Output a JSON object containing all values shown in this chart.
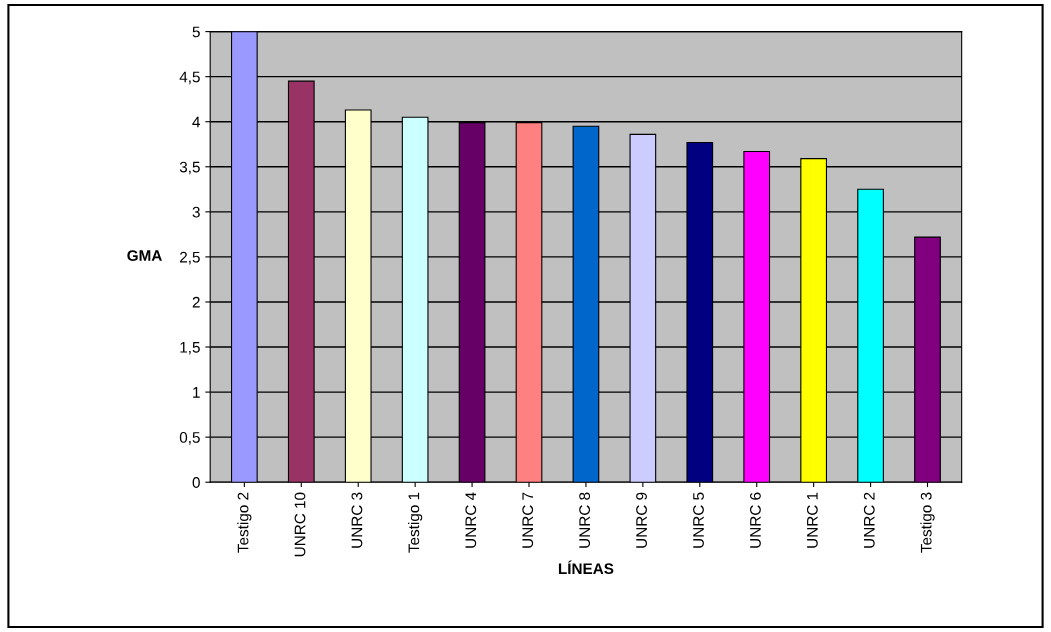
{
  "chart_data": {
    "type": "bar",
    "xlabel": "LÍNEAS",
    "ylabel": "GMA",
    "categories": [
      "Testigo 2",
      "UNRC 10",
      "UNRC 3",
      "Testigo 1",
      "UNRC 4",
      "UNRC 7",
      "UNRC 8",
      "UNRC 9",
      "UNRC 5",
      "UNRC 6",
      "UNRC 1",
      "UNRC 2",
      "Testigo 3"
    ],
    "values": [
      5.0,
      4.45,
      4.13,
      4.05,
      3.99,
      3.99,
      3.95,
      3.86,
      3.77,
      3.67,
      3.59,
      3.25,
      2.72
    ],
    "colors": [
      "#9999ff",
      "#993366",
      "#ffffcc",
      "#ccffff",
      "#660066",
      "#ff8080",
      "#0066cc",
      "#ccccff",
      "#000080",
      "#ff00ff",
      "#ffff00",
      "#00ffff",
      "#800080"
    ],
    "ylim": [
      0,
      5
    ],
    "yticks": [
      0,
      {
        "value": 0.5,
        "label": "0,5"
      },
      1,
      {
        "value": 1.5,
        "label": "1,5"
      },
      2,
      {
        "value": 2.5,
        "label": "2,5"
      },
      3,
      {
        "value": 3.5,
        "label": "3,5"
      },
      4,
      {
        "value": 4.5,
        "label": "4,5"
      },
      5
    ],
    "grid": "y",
    "legend": false
  }
}
